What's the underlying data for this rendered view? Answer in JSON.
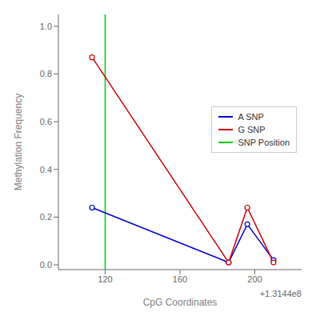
{
  "chart_data": {
    "type": "line",
    "xlabel": "CpG Coordinates",
    "ylabel": "Methylation Frequency",
    "x": [
      131440113,
      131440186,
      131440196,
      131440210
    ],
    "series": [
      {
        "name": "A SNP",
        "color": "#0000cc",
        "marker": "circle",
        "values": [
          0.24,
          0.01,
          0.17,
          0.02
        ]
      },
      {
        "name": "G SNP",
        "color": "#cc0000",
        "marker": "circle",
        "values": [
          0.87,
          0.01,
          0.24,
          0.01
        ]
      }
    ],
    "reference_lines": [
      {
        "name": "SNP Position",
        "color": "#00cc00",
        "x": 131440120
      }
    ],
    "xlim": [
      131440095,
      131440225
    ],
    "xticks": [
      {
        "value": 131440120,
        "label": "120"
      },
      {
        "value": 131440160,
        "label": "160"
      },
      {
        "value": 131440200,
        "label": "200"
      }
    ],
    "ylim": [
      -0.02,
      1.05
    ],
    "yticks": [
      {
        "value": 0.0,
        "label": "0.0"
      },
      0.2,
      0.4,
      0.6,
      0.8,
      {
        "value": 1.0,
        "label": "1.0"
      }
    ],
    "annotations": [
      "+1.3144e8"
    ],
    "legend": "center right",
    "grid": false
  }
}
